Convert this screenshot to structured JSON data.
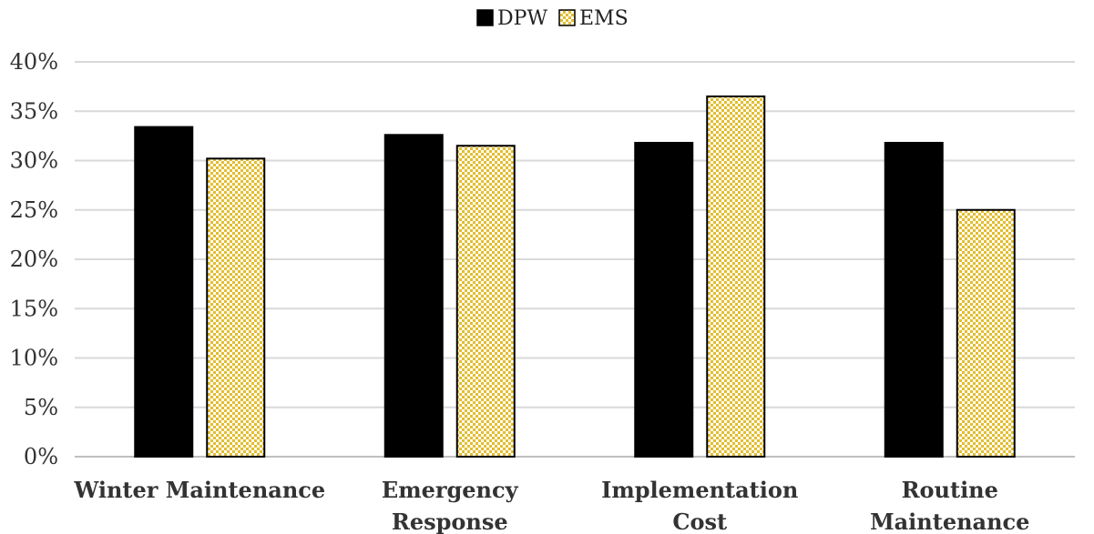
{
  "chart_data": {
    "type": "bar",
    "categories": [
      [
        "Winter Maintenance"
      ],
      [
        "Emergency",
        "Response"
      ],
      [
        "Implementation",
        "Cost"
      ],
      [
        "Routine",
        "Maintenance"
      ]
    ],
    "series": [
      {
        "name": "DPW",
        "values": [
          33.4,
          32.6,
          31.8,
          31.8
        ],
        "color": "#000000",
        "pattern": "solid"
      },
      {
        "name": "EMS",
        "values": [
          30.2,
          31.5,
          36.5,
          25.0
        ],
        "color": "#e8c53a",
        "pattern": "checkerboard"
      }
    ],
    "y_ticks": [
      "0%",
      "5%",
      "10%",
      "15%",
      "20%",
      "25%",
      "30%",
      "35%",
      "40%"
    ],
    "ylim": [
      0,
      40
    ],
    "grid": true,
    "legend_position": "top-center",
    "title": "",
    "xlabel": "",
    "ylabel": ""
  }
}
